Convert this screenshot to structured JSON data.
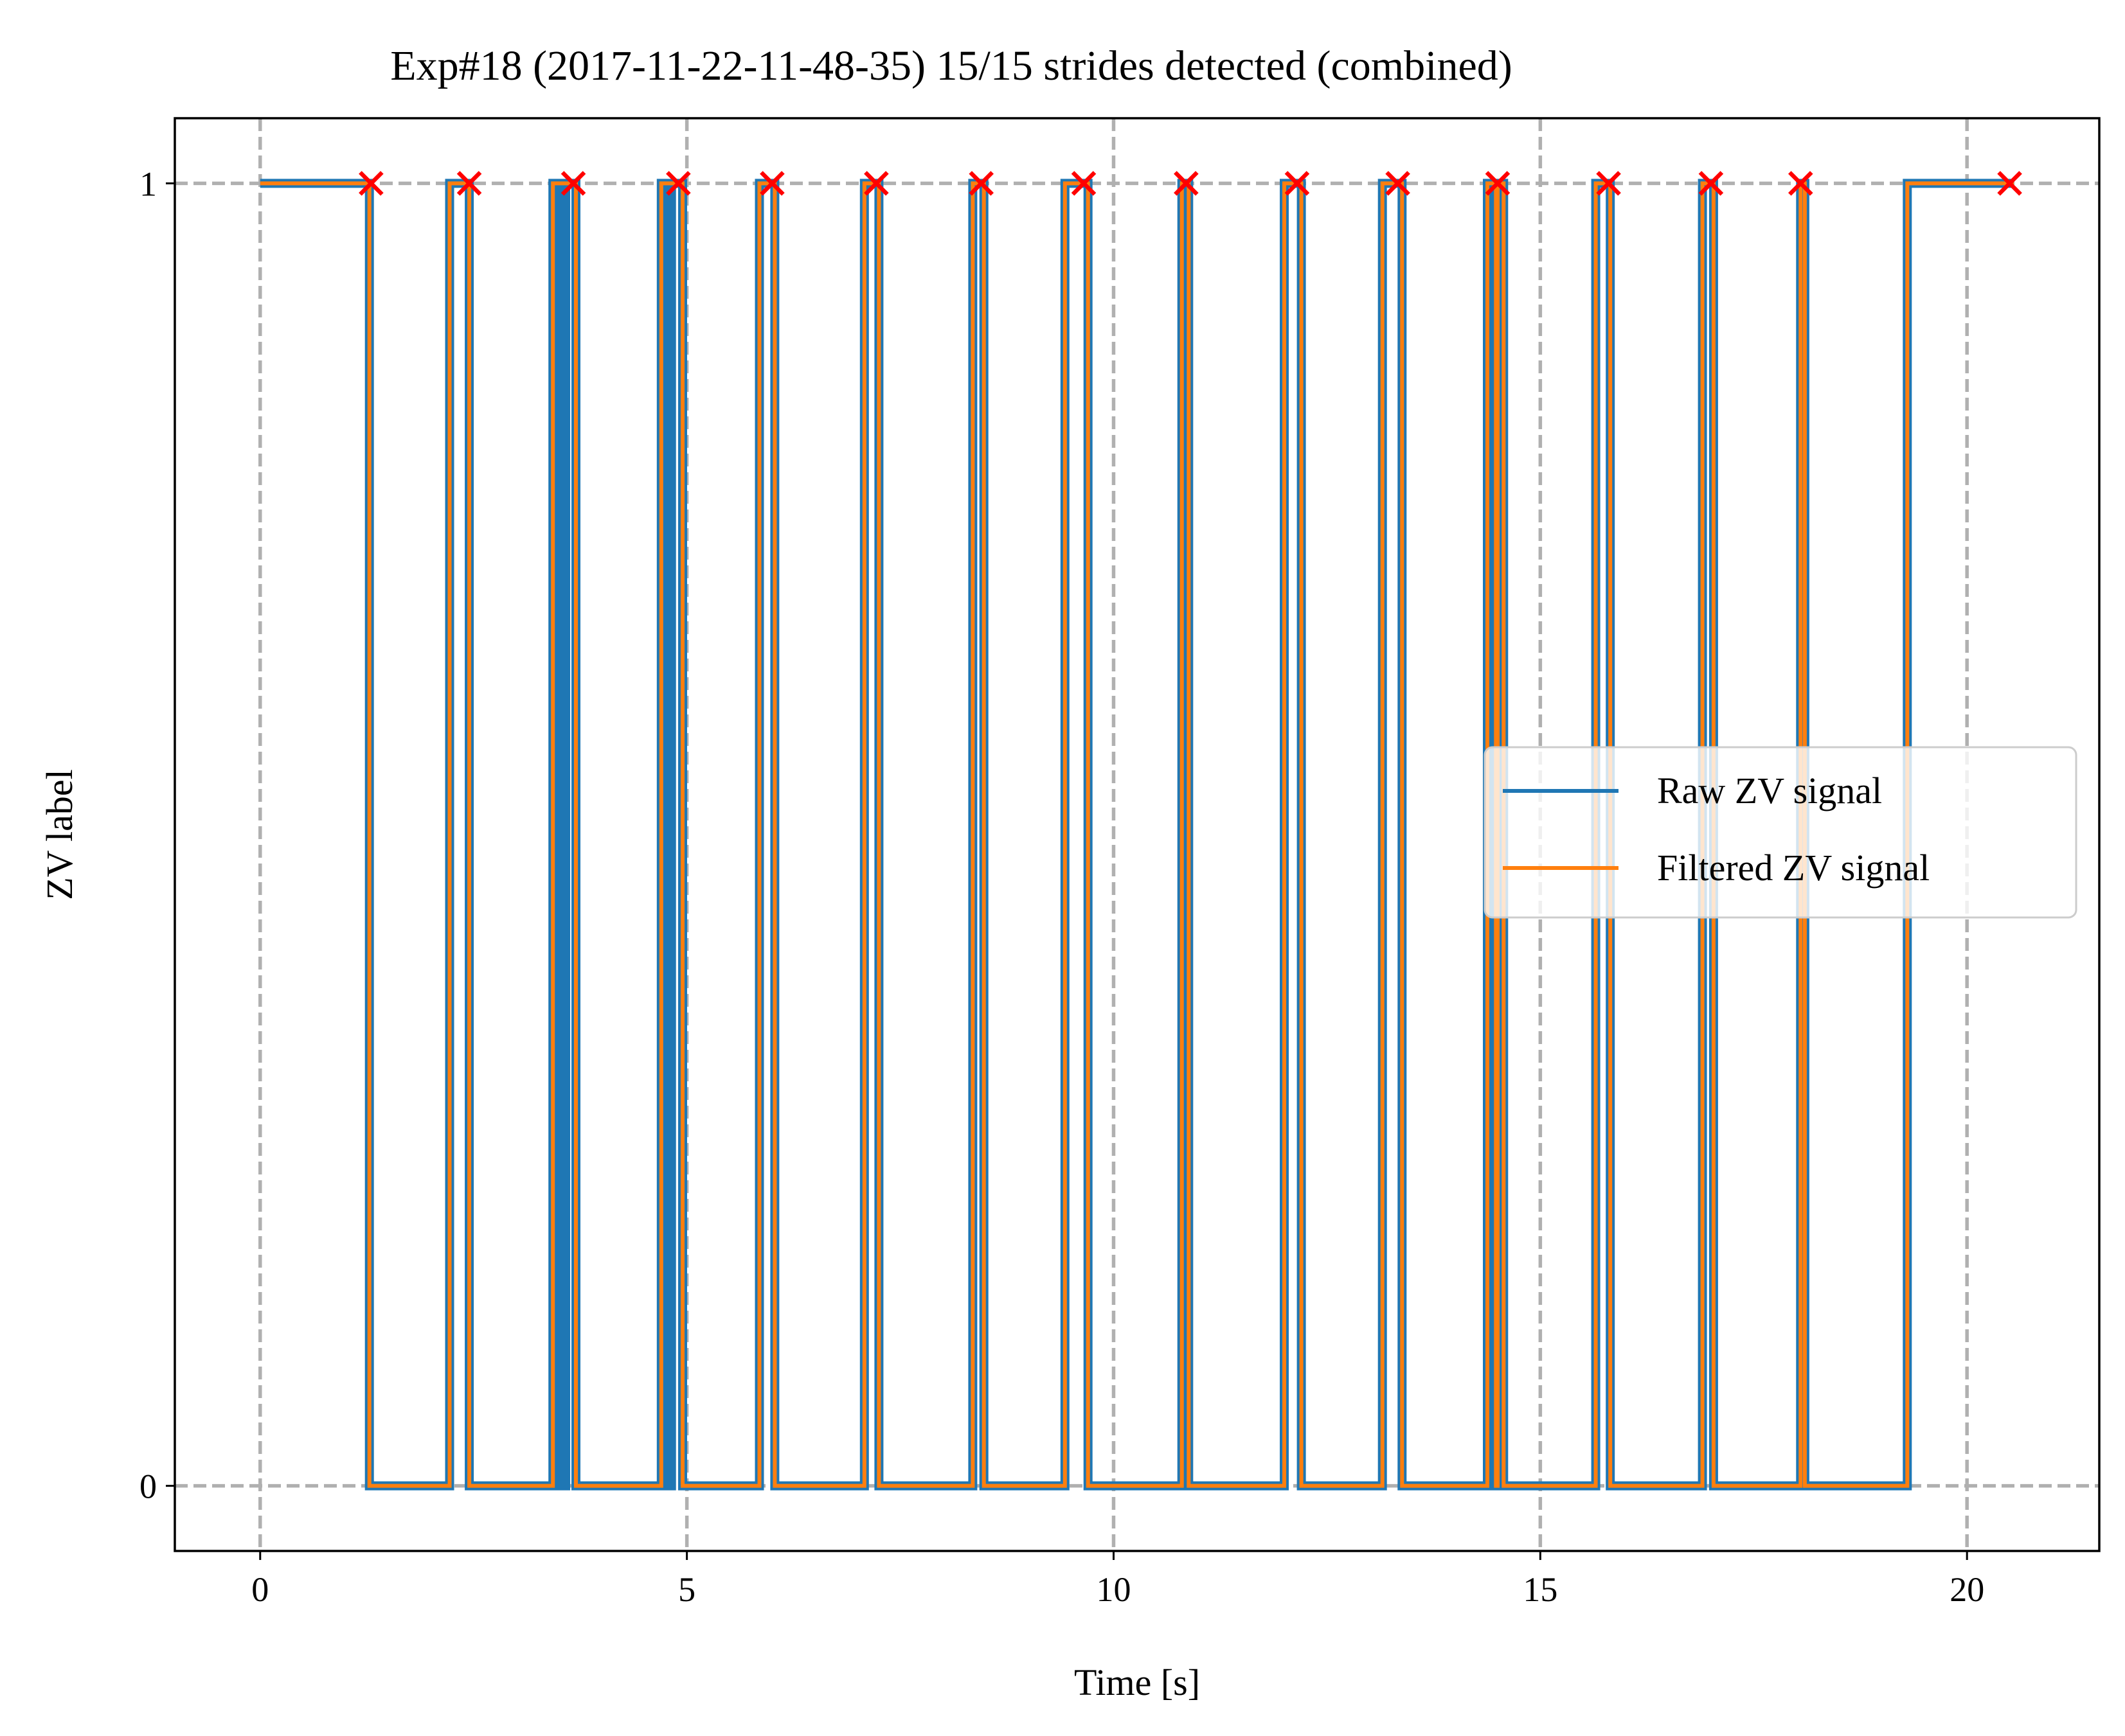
{
  "chart_data": {
    "type": "line",
    "title": "Exp#18 (2017-11-22-11-48-35) 15/15 strides detected (combined)",
    "xlabel": "Time [s]",
    "ylabel": "ZV label",
    "xlim": [
      -1.0,
      21.55
    ],
    "ylim": [
      -0.05,
      1.05
    ],
    "xticks": [
      0,
      5,
      10,
      15,
      20
    ],
    "yticks": [
      0,
      1
    ],
    "grid": true,
    "legend": {
      "position": "center-right"
    },
    "colors": {
      "raw": "#1f77b4",
      "filtered": "#ff7f0e",
      "markers": "#ff0000",
      "grid": "#b0b0b0"
    },
    "series": [
      {
        "name": "Raw ZV signal",
        "color": "#1f77b4",
        "step_x": [
          0,
          1.28,
          2.22,
          2.45,
          3.43,
          3.53,
          3.58,
          3.7,
          4.7,
          4.78,
          4.82,
          4.95,
          5.85,
          6.03,
          7.08,
          7.25,
          8.35,
          8.48,
          9.43,
          9.7,
          10.8,
          10.88,
          12.0,
          12.2,
          13.15,
          13.38,
          14.38,
          14.48,
          14.5,
          14.57,
          15.65,
          15.82,
          16.9,
          17.03,
          18.05,
          18.1,
          19.3,
          20.55
        ],
        "step_y": [
          1,
          0,
          1,
          0,
          1,
          0,
          1,
          0,
          1,
          0,
          1,
          0,
          1,
          0,
          1,
          0,
          1,
          0,
          1,
          0,
          1,
          0,
          1,
          0,
          1,
          0,
          1,
          0,
          1,
          0,
          1,
          0,
          1,
          0,
          1,
          0,
          1,
          1
        ]
      },
      {
        "name": "Filtered ZV signal",
        "color": "#ff7f0e",
        "step_x": [
          0,
          1.28,
          2.22,
          2.45,
          3.43,
          3.7,
          4.7,
          4.95,
          5.85,
          6.03,
          7.08,
          7.25,
          8.35,
          8.48,
          9.43,
          9.7,
          10.8,
          10.88,
          12.0,
          12.2,
          13.15,
          13.38,
          14.38,
          14.48,
          14.5,
          14.57,
          15.65,
          15.82,
          16.9,
          17.03,
          18.05,
          18.1,
          19.3,
          20.55
        ],
        "step_y": [
          1,
          0,
          1,
          0,
          1,
          0,
          1,
          0,
          1,
          0,
          1,
          0,
          1,
          0,
          1,
          0,
          1,
          0,
          1,
          0,
          1,
          0,
          1,
          0,
          1,
          0,
          1,
          0,
          1,
          0,
          1,
          0,
          1,
          1
        ]
      }
    ],
    "stride_markers": {
      "marker": "x",
      "color": "#ff0000",
      "y": 1,
      "x": [
        1.3,
        2.45,
        3.67,
        4.9,
        6.0,
        7.22,
        8.45,
        9.65,
        10.85,
        12.15,
        13.33,
        14.5,
        15.8,
        17.0,
        18.05,
        20.5
      ]
    }
  }
}
